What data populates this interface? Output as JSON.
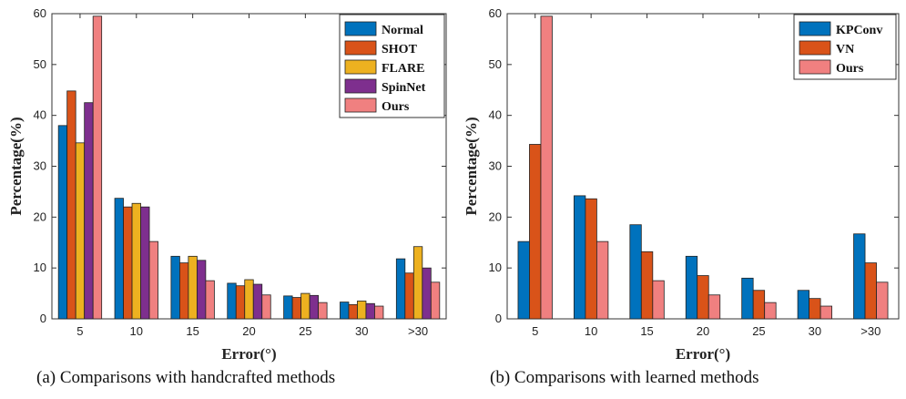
{
  "chart_data": [
    {
      "type": "bar",
      "categories": [
        "5",
        "10",
        "15",
        "20",
        "25",
        "30",
        ">30"
      ],
      "series": [
        {
          "name": "Normal",
          "color": "#0072BD",
          "values": [
            38,
            23.7,
            12.3,
            7.0,
            4.5,
            3.3,
            11.8
          ]
        },
        {
          "name": "SHOT",
          "color": "#D95319",
          "values": [
            44.8,
            22.0,
            11.0,
            6.5,
            4.2,
            2.8,
            9.0
          ]
        },
        {
          "name": "FLARE",
          "color": "#EDB120",
          "values": [
            34.6,
            22.7,
            12.3,
            7.7,
            5.0,
            3.5,
            14.2
          ]
        },
        {
          "name": "SpinNet",
          "color": "#7E2F8E",
          "values": [
            42.5,
            22.0,
            11.5,
            6.8,
            4.6,
            3.0,
            10.0
          ]
        },
        {
          "name": "Ours",
          "color": "#F08080",
          "values": [
            59.5,
            15.2,
            7.5,
            4.7,
            3.2,
            2.5,
            7.2
          ]
        }
      ],
      "xlabel": "Error(°)",
      "ylabel": "Percentage(%)",
      "ylim": [
        0,
        60
      ],
      "yticks": [
        0,
        10,
        20,
        30,
        40,
        50,
        60
      ],
      "legend": "top-right",
      "grid": false,
      "caption": "(a) Comparisons with handcrafted methods"
    },
    {
      "type": "bar",
      "categories": [
        "5",
        "10",
        "15",
        "20",
        "25",
        "30",
        ">30"
      ],
      "series": [
        {
          "name": "KPConv",
          "color": "#0072BD",
          "values": [
            15.2,
            24.2,
            18.5,
            12.3,
            8.0,
            5.6,
            16.7
          ]
        },
        {
          "name": "VN",
          "color": "#D95319",
          "values": [
            34.3,
            23.6,
            13.2,
            8.5,
            5.6,
            4.0,
            11.0
          ]
        },
        {
          "name": "Ours",
          "color": "#F08080",
          "values": [
            59.5,
            15.2,
            7.5,
            4.7,
            3.2,
            2.5,
            7.2
          ]
        }
      ],
      "xlabel": "Error(°)",
      "ylabel": "Percentage(%)",
      "ylim": [
        0,
        60
      ],
      "yticks": [
        0,
        10,
        20,
        30,
        40,
        50,
        60
      ],
      "legend": "top-left",
      "grid": false,
      "caption": "(b) Comparisons with learned methods"
    }
  ]
}
